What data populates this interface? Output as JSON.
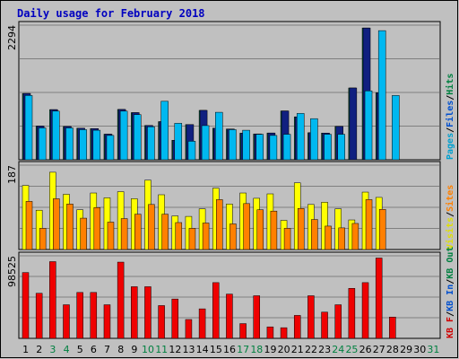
{
  "chart_data": {
    "type": "bar",
    "title": "Daily usage for February 2018",
    "days": [
      "1",
      "2",
      "3",
      "4",
      "5",
      "6",
      "7",
      "8",
      "9",
      "10",
      "11",
      "12",
      "13",
      "14",
      "15",
      "16",
      "17",
      "18",
      "19",
      "20",
      "21",
      "22",
      "23",
      "24",
      "25",
      "26",
      "27",
      "28",
      "29",
      "30",
      "31"
    ],
    "weekend_days": [
      "3",
      "4",
      "10",
      "11",
      "17",
      "18",
      "24",
      "25",
      "31"
    ],
    "panels": [
      {
        "id": "top",
        "max_label": "2294",
        "ymax": 2294,
        "legend": [
          "Pages",
          "/",
          "Files",
          "/",
          "Hits"
        ],
        "legend_colors": [
          "#00a0d0",
          "#000000",
          "#0050d0",
          "#000000",
          "#008040"
        ],
        "series": [
          {
            "name": "Hits",
            "color": "#00805c",
            "values": [
              1145,
              582,
              866,
              575,
              545,
              538,
              442,
              869,
              814,
              592,
              658,
              337,
              608,
              853,
              546,
              531,
              459,
              446,
              462,
              843,
              741,
              467,
              461,
              576,
              1240,
              2276,
              1157,
              0,
              0,
              0,
              0
            ]
          },
          {
            "name": "Files",
            "color": "#0020a0",
            "values": [
              1145,
              582,
              866,
              575,
              545,
              538,
              442,
              869,
              814,
              592,
              658,
              337,
              608,
              853,
              546,
              531,
              459,
              446,
              462,
              843,
              741,
              467,
              461,
              576,
              1240,
              2276,
              1157,
              0,
              0,
              0,
              0
            ]
          },
          {
            "name": "Pages",
            "color": "#00b8f0",
            "values": [
              1110,
              550,
              840,
              550,
              520,
              510,
              420,
              840,
              780,
              570,
              1010,
              630,
              320,
              590,
              820,
              520,
              510,
              440,
              420,
              440,
              800,
              710,
              440,
              440,
              0,
              1190,
              2230,
              1110,
              0,
              0,
              0
            ]
          }
        ]
      },
      {
        "id": "mid",
        "max_label": "187",
        "ymax": 187,
        "legend": [
          "Visits",
          "/",
          "Sites"
        ],
        "legend_colors": [
          "#e0e000",
          "#000000",
          "#ff8000"
        ],
        "series": [
          {
            "name": "Visits",
            "color": "#ffff00",
            "values": [
              145,
              89,
              175,
              125,
              90,
              128,
              117,
              131,
              115,
              157,
              124,
              76,
              75,
              92,
              139,
              103,
              128,
              116,
              126,
              66,
              151,
              102,
              107,
              92,
              67,
              130,
              118,
              0,
              0,
              0,
              0
            ]
          },
          {
            "name": "Sites",
            "color": "#ff8000",
            "values": [
              109,
              48,
              115,
              103,
              71,
              95,
              62,
              70,
              80,
              102,
              80,
              61,
              48,
              60,
              113,
              58,
              104,
              90,
              87,
              48,
              93,
              68,
              53,
              49,
              59,
              113,
              91,
              0,
              0,
              0,
              0
            ]
          }
        ]
      },
      {
        "id": "bot",
        "max_label": "98525",
        "ymax": 98525,
        "legend": [
          "KB F",
          "/",
          "KB In",
          "/",
          "KB Out"
        ],
        "legend_colors": [
          "#d00000",
          "#000000",
          "#0050d0",
          "#000000",
          "#008040"
        ],
        "series": [
          {
            "name": "KB F",
            "color": "#ef0000",
            "values": [
              80300,
              55000,
              93600,
              41000,
              56000,
              56000,
              41000,
              93000,
              63000,
              63000,
              40000,
              48000,
              23000,
              36000,
              68000,
              54000,
              18000,
              52000,
              14000,
              13000,
              28000,
              52000,
              32000,
              41000,
              61000,
              68000,
              98000,
              26000,
              0,
              0,
              0
            ]
          }
        ]
      }
    ]
  }
}
